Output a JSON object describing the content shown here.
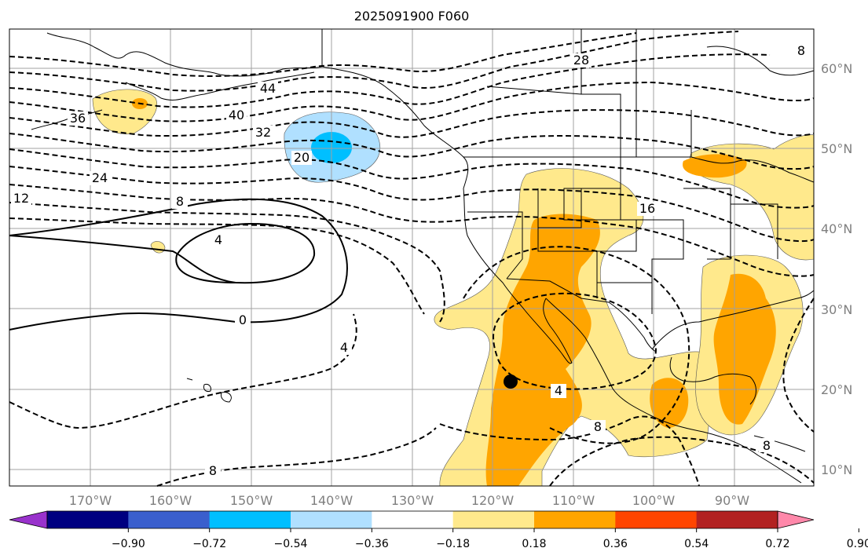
{
  "title": "2025091900 F060",
  "map": {
    "lon_ticks": [
      "170°W",
      "160°W",
      "150°W",
      "140°W",
      "130°W",
      "120°W",
      "110°W",
      "100°W",
      "90°W"
    ],
    "lat_ticks": [
      "60°N",
      "50°N",
      "40°N",
      "30°N",
      "20°N",
      "10°N"
    ],
    "contour_labels": [
      "44",
      "40",
      "36",
      "32",
      "28",
      "24",
      "20",
      "16",
      "12",
      "8",
      "8",
      "4",
      "0",
      "4",
      "4",
      "8",
      "8",
      "8"
    ],
    "marker": "black-dot"
  },
  "colorbar": {
    "tick_labels": [
      "−0.90",
      "−0.72",
      "−0.54",
      "−0.36",
      "−0.18",
      "0.18",
      "0.36",
      "0.54",
      "0.72",
      "0.90"
    ],
    "colors": [
      "#9932cc",
      "#000080",
      "#3a5fcd",
      "#00bfff",
      "#b0e0ff",
      "#ffffff",
      "#ffe98c",
      "#ffa500",
      "#ff4500",
      "#b22222",
      "#ff88aa"
    ]
  }
}
